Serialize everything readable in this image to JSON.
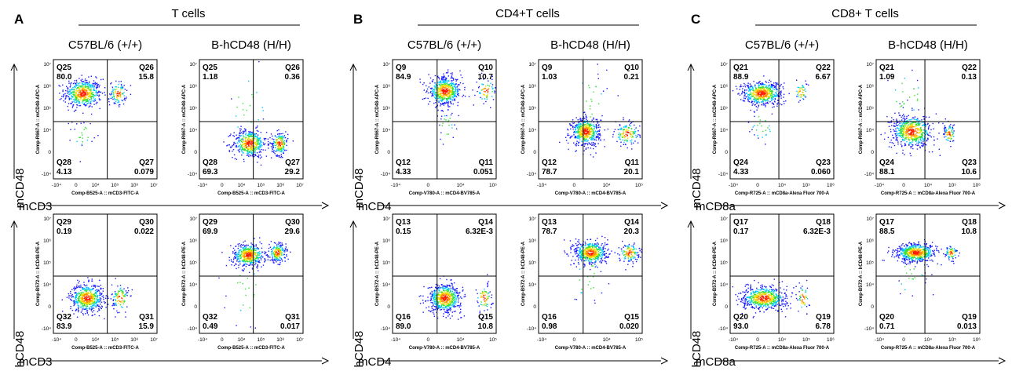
{
  "chart_data": {
    "type": "scatter",
    "dot_colors": [
      "#1a1aff",
      "#00c8ff",
      "#33e033",
      "#f5e000",
      "#ff8c00",
      "#ff1a00"
    ],
    "panels": [
      {
        "letter": "A",
        "group_title": "T cells",
        "x_axis_name": "mCD3",
        "y_axis_top": "mCD48",
        "y_axis_bottom": "hCD48",
        "x_tick_labels": [
          "-10⁴",
          "0",
          "10⁴",
          "10⁵",
          "10⁶",
          "10⁷"
        ],
        "y_tick_labels": [
          "10⁷",
          "10⁶",
          "10⁵",
          "10⁴",
          "0",
          "-10⁴"
        ],
        "plots": [
          {
            "col_title": "C57BL/6 (+/+)",
            "x_label": "Comp-B525-A :: mCD3-FITC-A",
            "y_label": "Comp-R667-A :: mCD48-APC-A",
            "quadrants": [
              {
                "name": "Q25",
                "value": "80.0"
              },
              {
                "name": "Q26",
                "value": "15.8"
              },
              {
                "name": "Q27",
                "value": "0.079"
              },
              {
                "name": "Q28",
                "value": "4.13"
              }
            ],
            "clusters": [
              {
                "x": 0.28,
                "y": 0.72,
                "n": 0.8,
                "sx": 0.09,
                "sy": 0.06
              },
              {
                "x": 0.62,
                "y": 0.72,
                "n": 0.16,
                "sx": 0.04,
                "sy": 0.05
              },
              {
                "x": 0.28,
                "y": 0.38,
                "n": 0.04,
                "sx": 0.05,
                "sy": 0.06
              }
            ]
          },
          {
            "col_title": "B-hCD48 (H/H)",
            "x_label": "Comp-B525-A :: mCD3-FITC-A",
            "y_label": "Comp-R667-A :: mCD48-APC-A",
            "quadrants": [
              {
                "name": "Q25",
                "value": "1.18"
              },
              {
                "name": "Q26",
                "value": "0.36"
              },
              {
                "name": "Q27",
                "value": "29.2"
              },
              {
                "name": "Q28",
                "value": "69.3"
              }
            ],
            "clusters": [
              {
                "x": 0.48,
                "y": 0.3,
                "n": 0.69,
                "sx": 0.08,
                "sy": 0.06
              },
              {
                "x": 0.77,
                "y": 0.3,
                "n": 0.29,
                "sx": 0.04,
                "sy": 0.05
              },
              {
                "x": 0.46,
                "y": 0.6,
                "n": 0.02,
                "sx": 0.1,
                "sy": 0.15
              }
            ]
          },
          {
            "col_title": "",
            "x_label": "Comp-B525-A :: mCD3-FITC-A",
            "y_label": "Comp-B572-A :: hCD48-PE-A",
            "quadrants": [
              {
                "name": "Q30",
                "value": "0.022"
              },
              {
                "name": "Q29",
                "value": "0.19"
              },
              {
                "name": "Q31",
                "value": "15.9"
              },
              {
                "name": "Q32",
                "value": "83.9"
              }
            ],
            "clusters": [
              {
                "x": 0.32,
                "y": 0.3,
                "n": 0.84,
                "sx": 0.08,
                "sy": 0.06
              },
              {
                "x": 0.64,
                "y": 0.3,
                "n": 0.16,
                "sx": 0.04,
                "sy": 0.06
              }
            ]
          },
          {
            "col_title": "",
            "x_label": "Comp-B525-A :: mCD3-FITC-A",
            "y_label": "Comp-B572-A :: hCD48-PE-A",
            "quadrants": [
              {
                "name": "Q30",
                "value": "29.6"
              },
              {
                "name": "Q29",
                "value": "69.9"
              },
              {
                "name": "Q31",
                "value": "0.017"
              },
              {
                "name": "Q32",
                "value": "0.49"
              }
            ],
            "clusters": [
              {
                "x": 0.47,
                "y": 0.66,
                "n": 0.7,
                "sx": 0.08,
                "sy": 0.05
              },
              {
                "x": 0.75,
                "y": 0.68,
                "n": 0.3,
                "sx": 0.04,
                "sy": 0.04
              },
              {
                "x": 0.46,
                "y": 0.35,
                "n": 0.02,
                "sx": 0.1,
                "sy": 0.15
              }
            ]
          }
        ]
      },
      {
        "letter": "B",
        "group_title": "CD4+T cells",
        "x_axis_name": "mCD4",
        "y_axis_top": "mCD48",
        "y_axis_bottom": "hCD48",
        "x_tick_labels": [
          "-10⁴",
          "0",
          "10⁴",
          "10⁵"
        ],
        "y_tick_labels": [
          "10⁷",
          "10⁶",
          "10⁵",
          "10⁴",
          "0",
          "-10⁴"
        ],
        "plots": [
          {
            "col_title": "C57BL/6 (+/+)",
            "x_label": "Comp-V780-A :: mCD4-BV785-A",
            "y_label": "Comp-R667-A :: mCD48-APC-A",
            "quadrants": [
              {
                "name": "Q9",
                "value": "84.9"
              },
              {
                "name": "Q10",
                "value": "10.7"
              },
              {
                "name": "Q11",
                "value": "0.051"
              },
              {
                "name": "Q12",
                "value": "4.33"
              }
            ],
            "clusters": [
              {
                "x": 0.5,
                "y": 0.74,
                "n": 0.85,
                "sx": 0.08,
                "sy": 0.06
              },
              {
                "x": 0.9,
                "y": 0.74,
                "n": 0.11,
                "sx": 0.05,
                "sy": 0.05
              },
              {
                "x": 0.52,
                "y": 0.45,
                "n": 0.04,
                "sx": 0.04,
                "sy": 0.07
              }
            ]
          },
          {
            "col_title": "B-hCD48 (H/H)",
            "x_label": "Comp-V780-A :: mCD4-BV785-A",
            "y_label": "Comp-R667-A :: mCD48-APC-A",
            "quadrants": [
              {
                "name": "Q9",
                "value": "1.03"
              },
              {
                "name": "Q10",
                "value": "0.21"
              },
              {
                "name": "Q11",
                "value": "20.1"
              },
              {
                "name": "Q12",
                "value": "78.7"
              }
            ],
            "clusters": [
              {
                "x": 0.45,
                "y": 0.4,
                "n": 0.79,
                "sx": 0.07,
                "sy": 0.06
              },
              {
                "x": 0.85,
                "y": 0.38,
                "n": 0.2,
                "sx": 0.06,
                "sy": 0.05
              },
              {
                "x": 0.5,
                "y": 0.65,
                "n": 0.02,
                "sx": 0.08,
                "sy": 0.15
              }
            ]
          },
          {
            "col_title": "",
            "x_label": "Comp-V780-A :: mCD4-BV785-A",
            "y_label": "Comp-B572-A :: hCD48-PE-A",
            "quadrants": [
              {
                "name": "Q14",
                "value": "6.32E-3"
              },
              {
                "name": "Q13",
                "value": "0.15"
              },
              {
                "name": "Q15",
                "value": "10.8"
              },
              {
                "name": "Q16",
                "value": "89.0"
              }
            ],
            "clusters": [
              {
                "x": 0.5,
                "y": 0.3,
                "n": 0.89,
                "sx": 0.08,
                "sy": 0.06
              },
              {
                "x": 0.88,
                "y": 0.3,
                "n": 0.11,
                "sx": 0.04,
                "sy": 0.06
              }
            ]
          },
          {
            "col_title": "",
            "x_label": "Comp-V780-A :: mCD4-BV785-A",
            "y_label": "Comp-B572-A :: hCD48-PE-A",
            "quadrants": [
              {
                "name": "Q14",
                "value": "20.3"
              },
              {
                "name": "Q13",
                "value": "78.7"
              },
              {
                "name": "Q15",
                "value": "0.020"
              },
              {
                "name": "Q16",
                "value": "0.98"
              }
            ],
            "clusters": [
              {
                "x": 0.5,
                "y": 0.68,
                "n": 0.79,
                "sx": 0.08,
                "sy": 0.05
              },
              {
                "x": 0.87,
                "y": 0.68,
                "n": 0.2,
                "sx": 0.05,
                "sy": 0.04
              },
              {
                "x": 0.48,
                "y": 0.45,
                "n": 0.02,
                "sx": 0.08,
                "sy": 0.12
              }
            ]
          }
        ]
      },
      {
        "letter": "C",
        "group_title": "CD8+ T cells",
        "x_axis_name": "mCD8a",
        "y_axis_top": "mCD48",
        "y_axis_bottom": "hCD48",
        "x_tick_labels": [
          "-10⁴",
          "0",
          "10⁴",
          "10⁵",
          "10⁶"
        ],
        "y_tick_labels": [
          "10⁷",
          "10⁶",
          "10⁵",
          "10⁴",
          "0",
          "-10⁴"
        ],
        "plots": [
          {
            "col_title": "C57BL/6 (+/+)",
            "x_label": "Comp-R725-A :: mCD8a-Alexa Fluor 700-A",
            "y_label": "Comp-R667-A :: mCD48-APC-A",
            "quadrants": [
              {
                "name": "Q21",
                "value": "88.9"
              },
              {
                "name": "Q22",
                "value": "6.67"
              },
              {
                "name": "Q23",
                "value": "0.060"
              },
              {
                "name": "Q24",
                "value": "4.33"
              }
            ],
            "clusters": [
              {
                "x": 0.3,
                "y": 0.72,
                "n": 0.89,
                "sx": 0.1,
                "sy": 0.05
              },
              {
                "x": 0.68,
                "y": 0.73,
                "n": 0.07,
                "sx": 0.03,
                "sy": 0.04
              },
              {
                "x": 0.3,
                "y": 0.45,
                "n": 0.04,
                "sx": 0.06,
                "sy": 0.07
              }
            ]
          },
          {
            "col_title": "B-hCD48 (H/H)",
            "x_label": "Comp-R725-A :: mCD8a-Alexa Fluor 700-A",
            "y_label": "Comp-R667-A :: mCD48-APC-A",
            "quadrants": [
              {
                "name": "Q21",
                "value": "1.09"
              },
              {
                "name": "Q22",
                "value": "0.13"
              },
              {
                "name": "Q23",
                "value": "10.6"
              },
              {
                "name": "Q24",
                "value": "88.1"
              }
            ],
            "clusters": [
              {
                "x": 0.34,
                "y": 0.4,
                "n": 0.88,
                "sx": 0.1,
                "sy": 0.07
              },
              {
                "x": 0.7,
                "y": 0.38,
                "n": 0.11,
                "sx": 0.03,
                "sy": 0.04
              },
              {
                "x": 0.3,
                "y": 0.7,
                "n": 0.01,
                "sx": 0.1,
                "sy": 0.1
              }
            ]
          },
          {
            "col_title": "",
            "x_label": "Comp-R725-A :: mCD8a-Alexa Fluor 700-A",
            "y_label": "Comp-B572-A :: hCD48-PE-A",
            "quadrants": [
              {
                "name": "Q18",
                "value": "6.32E-3"
              },
              {
                "name": "Q17",
                "value": "0.17"
              },
              {
                "name": "Q19",
                "value": "6.78"
              },
              {
                "name": "Q20",
                "value": "93.0"
              }
            ],
            "clusters": [
              {
                "x": 0.32,
                "y": 0.3,
                "n": 0.93,
                "sx": 0.11,
                "sy": 0.05
              },
              {
                "x": 0.7,
                "y": 0.3,
                "n": 0.07,
                "sx": 0.03,
                "sy": 0.06
              }
            ]
          },
          {
            "col_title": "",
            "x_label": "Comp-R725-A :: mCD8a-Alexa Fluor 700-A",
            "y_label": "Comp-B572-A :: hCD48-PE-A",
            "quadrants": [
              {
                "name": "Q18",
                "value": "10.8"
              },
              {
                "name": "Q17",
                "value": "88.5"
              },
              {
                "name": "Q19",
                "value": "0.013"
              },
              {
                "name": "Q20",
                "value": "0.71"
              }
            ],
            "clusters": [
              {
                "x": 0.38,
                "y": 0.68,
                "n": 0.89,
                "sx": 0.1,
                "sy": 0.04
              },
              {
                "x": 0.72,
                "y": 0.68,
                "n": 0.11,
                "sx": 0.03,
                "sy": 0.03
              },
              {
                "x": 0.34,
                "y": 0.5,
                "n": 0.01,
                "sx": 0.08,
                "sy": 0.1
              }
            ]
          }
        ]
      }
    ]
  }
}
